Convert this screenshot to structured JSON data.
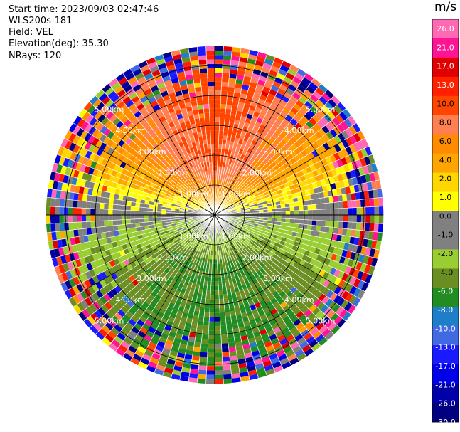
{
  "info": {
    "start_time": "Start time: 2023/09/03 02:47:46",
    "station": "WLS200s-181",
    "field": "Field: VEL",
    "elevation": "Elevation(deg): 35.30",
    "nrays": "NRays: 120"
  },
  "chart_data": {
    "type": "heatmap",
    "projection": "polar-ppi",
    "field": "VEL",
    "units": "m/s",
    "num_rays": 120,
    "range_rings_km": [
      1,
      2,
      3,
      4,
      5
    ],
    "ring_labels": [
      "1.00km",
      "2.00km",
      "3.00km",
      "4.00km",
      "5.00km"
    ],
    "spoke_angles_deg": [
      0,
      30,
      60,
      90,
      120,
      150,
      180,
      210,
      240,
      270,
      300,
      330
    ],
    "max_range_km": 5.65,
    "colorbar": {
      "title": "m/s",
      "tick_labels": [
        "26.0",
        "21.0",
        "17.0",
        "13.0",
        "10.0",
        "8.0",
        "6.0",
        "4.0",
        "2.0",
        "1.0",
        "0.0",
        "-1.0",
        "-2.0",
        "-4.0",
        "-6.0",
        "-8.0",
        "-10.0",
        "-13.0",
        "-17.0",
        "-21.0",
        "-26.0",
        "-30.0"
      ],
      "colors": [
        "#000080",
        "#0000a8",
        "#0000e6",
        "#1a1aff",
        "#4169e1",
        "#1e7fc8",
        "#228b22",
        "#6b8e23",
        "#9acd32",
        "#808080",
        "#808080",
        "#ffff00",
        "#ffd700",
        "#ffa500",
        "#ff8c00",
        "#ff7f50",
        "#ff4500",
        "#ff2000",
        "#e00000",
        "#ff1493",
        "#ff69b4"
      ],
      "value_edges": [
        -30,
        -26,
        -21,
        -17,
        -13,
        -10,
        -8,
        -6,
        -4,
        -2,
        -1,
        0,
        1,
        2,
        4,
        6,
        8,
        10,
        13,
        17,
        21,
        26
      ]
    }
  }
}
